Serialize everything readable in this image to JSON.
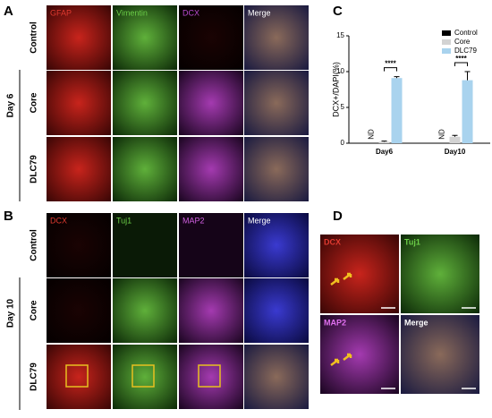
{
  "panel_labels": [
    "A",
    "B",
    "C",
    "D"
  ],
  "panel_a": {
    "group_label": "Day 6",
    "columns": [
      "GFAP",
      "Vimentin",
      "DCX",
      "Merge"
    ],
    "rows": [
      "Control",
      "Core",
      "DLC79"
    ]
  },
  "panel_b": {
    "group_label": "Day 10",
    "columns": [
      "DCX",
      "Tuj1",
      "MAP2",
      "Merge"
    ],
    "rows": [
      "Control",
      "Core",
      "DLC79"
    ]
  },
  "panel_d": {
    "labels": [
      "DCX",
      "Tuj1",
      "MAP2",
      "Merge"
    ]
  },
  "chart_data": {
    "type": "bar",
    "ylabel": "DCX+/DAPI(%)",
    "categories": [
      "Day6",
      "Day10"
    ],
    "series": [
      {
        "name": "Control",
        "color": "#000000",
        "values": [
          null,
          null
        ]
      },
      {
        "name": "Core",
        "color": "#d3d3d3",
        "values": [
          0.2,
          0.9
        ],
        "errors": [
          0.1,
          0.2
        ]
      },
      {
        "name": "DLC79",
        "color": "#a9d3ee",
        "values": [
          9.1,
          8.8
        ],
        "errors": [
          0.2,
          1.2
        ]
      }
    ],
    "nd_labels": [
      "ND",
      "ND"
    ],
    "significance": [
      "****",
      "****"
    ],
    "ylim": [
      0,
      15
    ],
    "yticks": [
      0,
      5,
      10,
      15
    ],
    "legend": "upper right"
  }
}
